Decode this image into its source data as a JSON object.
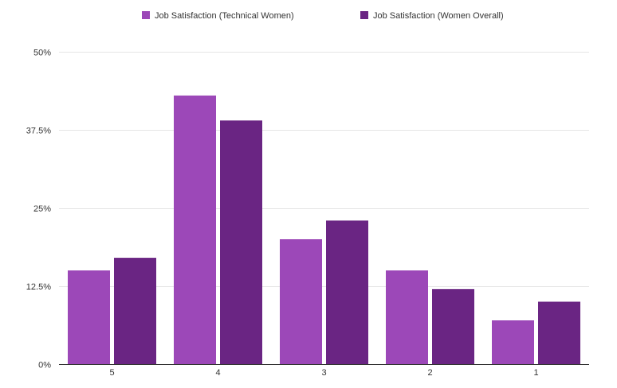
{
  "chart_data": {
    "type": "bar",
    "categories": [
      "5",
      "4",
      "3",
      "2",
      "1"
    ],
    "series": [
      {
        "name": "Job Satisfaction (Technical Women)",
        "color": "#9c48b8",
        "values": [
          15,
          43,
          20,
          15,
          7
        ]
      },
      {
        "name": "Job Satisfaction (Women Overall)",
        "color": "#6a2583",
        "values": [
          17,
          39,
          23,
          12,
          10
        ]
      }
    ],
    "ylim": [
      0,
      50
    ],
    "yticks": [
      0,
      12.5,
      25,
      37.5,
      50
    ],
    "ytick_labels": [
      "0%",
      "12.5%",
      "25%",
      "37.5%",
      "50%"
    ],
    "grid": true,
    "legend_position": "top-center"
  }
}
